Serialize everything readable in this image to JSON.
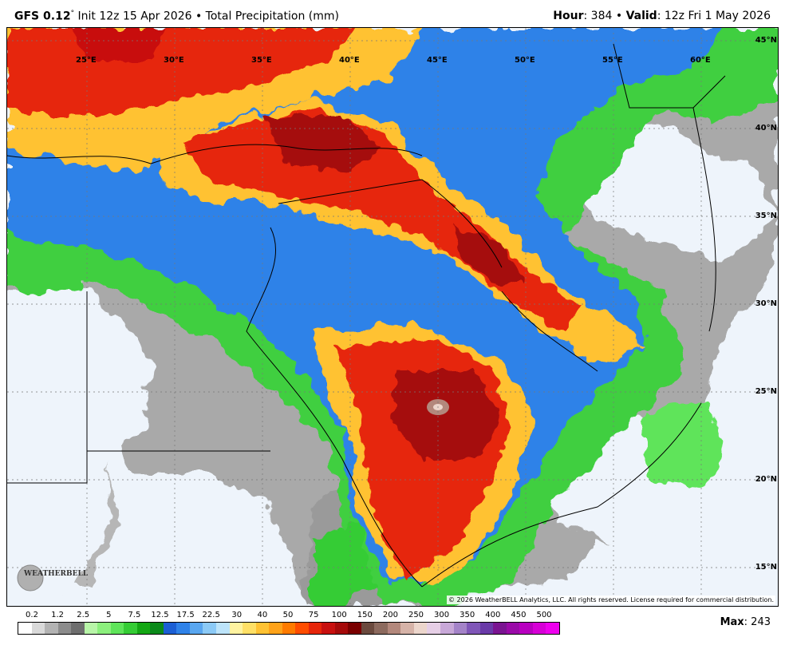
{
  "header": {
    "model": "GFS 0.12",
    "deg": "°",
    "init": " Init 12z 15 Apr 2026 • Total Precipitation (mm)",
    "hour_label": "Hour",
    "hour_value": ": 384 • ",
    "valid_label": "Valid",
    "valid_value": ": 12z Fri 1 May 2026"
  },
  "longitudes": [
    "25°E",
    "30°E",
    "35°E",
    "40°E",
    "45°E",
    "50°E",
    "55°E",
    "60°E"
  ],
  "latitudes": [
    "45°N",
    "40°N",
    "35°N",
    "30°N",
    "25°N",
    "20°N",
    "15°N"
  ],
  "copyright": "© 2026 WeatherBELL Analytics, LLC. All rights reserved. License required for commercial distribution.",
  "logo_text": "WEATHERBELL",
  "colorbar": {
    "labels": [
      "0.2",
      "1.2",
      "2.5",
      "5",
      "7.5",
      "12.5",
      "17.5",
      "22.5",
      "30",
      "40",
      "50",
      "75",
      "100",
      "150",
      "200",
      "250",
      "300",
      "350",
      "400",
      "450",
      "500"
    ],
    "colors": [
      "#ffffff",
      "#d9d9d9",
      "#b3b3b3",
      "#8c8c8c",
      "#6e6e6e",
      "#b8f5a8",
      "#8cef7d",
      "#5fe45a",
      "#35cc35",
      "#14a714",
      "#0b8a1a",
      "#1c5fd4",
      "#2f82e8",
      "#5aa7f0",
      "#8ccaf6",
      "#bde4fa",
      "#fff3a0",
      "#ffe066",
      "#ffc233",
      "#ffa31a",
      "#ff7b00",
      "#ff4d00",
      "#e6260a",
      "#c8100f",
      "#a50a0a",
      "#7a0000",
      "#6b4a3e",
      "#8c6a5e",
      "#b3887c",
      "#d6b3a8",
      "#ecd6cc",
      "#e6cfe6",
      "#c8a8d8",
      "#a483c8",
      "#8056b8",
      "#6a3aa8",
      "#7a1491",
      "#9a0aa8",
      "#b800c0",
      "#d600d6",
      "#ee00ee"
    ]
  },
  "max": {
    "label": "Max",
    "value": ": 243"
  }
}
